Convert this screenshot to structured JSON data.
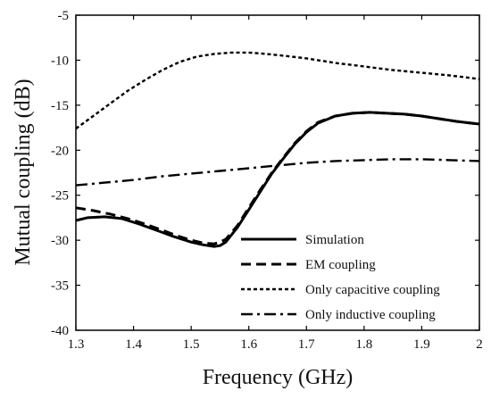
{
  "chart_data": {
    "type": "line",
    "title": "",
    "xlabel": "Frequency (GHz)",
    "ylabel": "Mutual coupling (dB)",
    "xlim": [
      1.3,
      2.0
    ],
    "ylim": [
      -40,
      -5
    ],
    "grid": false,
    "legend_position": "bottom-right",
    "xticks": [
      "1.3",
      "1.4",
      "1.5",
      "1.6",
      "1.7",
      "1.8",
      "1.9",
      "2"
    ],
    "yticks": [
      "-40",
      "-35",
      "-30",
      "-25",
      "-20",
      "-15",
      "-10",
      "-5"
    ],
    "series": [
      {
        "name": "Simulation",
        "line_style": "solid",
        "color": "#000000",
        "x": [
          1.3,
          1.32,
          1.35,
          1.38,
          1.41,
          1.44,
          1.47,
          1.5,
          1.52,
          1.54,
          1.55,
          1.56,
          1.58,
          1.6,
          1.62,
          1.64,
          1.66,
          1.68,
          1.7,
          1.72,
          1.75,
          1.78,
          1.81,
          1.84,
          1.87,
          1.9,
          1.93,
          1.96,
          2.0
        ],
        "y": [
          -27.8,
          -27.5,
          -27.4,
          -27.6,
          -28.2,
          -28.9,
          -29.6,
          -30.2,
          -30.5,
          -30.7,
          -30.6,
          -30.2,
          -28.6,
          -26.6,
          -24.6,
          -22.6,
          -20.9,
          -19.3,
          -18.0,
          -17.0,
          -16.2,
          -15.9,
          -15.8,
          -15.9,
          -16.0,
          -16.2,
          -16.5,
          -16.8,
          -17.1
        ]
      },
      {
        "name": "EM coupling",
        "line_style": "dashed",
        "color": "#000000",
        "x": [
          1.3,
          1.33,
          1.36,
          1.39,
          1.42,
          1.45,
          1.48,
          1.5,
          1.52,
          1.54,
          1.55,
          1.56,
          1.58,
          1.6,
          1.62,
          1.64,
          1.66,
          1.68,
          1.7,
          1.72,
          1.75,
          1.78,
          1.81,
          1.84,
          1.87,
          1.9,
          1.93,
          1.96,
          2.0
        ],
        "y": [
          -26.4,
          -26.7,
          -27.1,
          -27.6,
          -28.2,
          -28.9,
          -29.6,
          -30.0,
          -30.3,
          -30.4,
          -30.2,
          -29.9,
          -28.4,
          -26.4,
          -24.4,
          -22.5,
          -20.8,
          -19.2,
          -17.9,
          -16.9,
          -16.2,
          -15.9,
          -15.8,
          -15.9,
          -16.0,
          -16.2,
          -16.5,
          -16.8,
          -17.1
        ]
      },
      {
        "name": "Only capacitive coupling",
        "line_style": "dotted",
        "color": "#000000",
        "x": [
          1.3,
          1.33,
          1.36,
          1.39,
          1.42,
          1.45,
          1.48,
          1.51,
          1.54,
          1.57,
          1.6,
          1.63,
          1.66,
          1.7,
          1.75,
          1.8,
          1.85,
          1.9,
          1.95,
          2.0
        ],
        "y": [
          -17.6,
          -16.2,
          -14.8,
          -13.4,
          -12.2,
          -11.1,
          -10.2,
          -9.6,
          -9.3,
          -9.15,
          -9.15,
          -9.3,
          -9.5,
          -9.8,
          -10.3,
          -10.7,
          -11.1,
          -11.4,
          -11.7,
          -12.1
        ]
      },
      {
        "name": "Only inductive coupling",
        "line_style": "dash-dot",
        "color": "#000000",
        "x": [
          1.3,
          1.35,
          1.4,
          1.45,
          1.5,
          1.55,
          1.6,
          1.65,
          1.7,
          1.75,
          1.8,
          1.85,
          1.9,
          1.95,
          2.0
        ],
        "y": [
          -23.9,
          -23.6,
          -23.3,
          -22.9,
          -22.6,
          -22.3,
          -22.0,
          -21.7,
          -21.4,
          -21.2,
          -21.1,
          -21.0,
          -21.0,
          -21.1,
          -21.2
        ]
      }
    ]
  }
}
